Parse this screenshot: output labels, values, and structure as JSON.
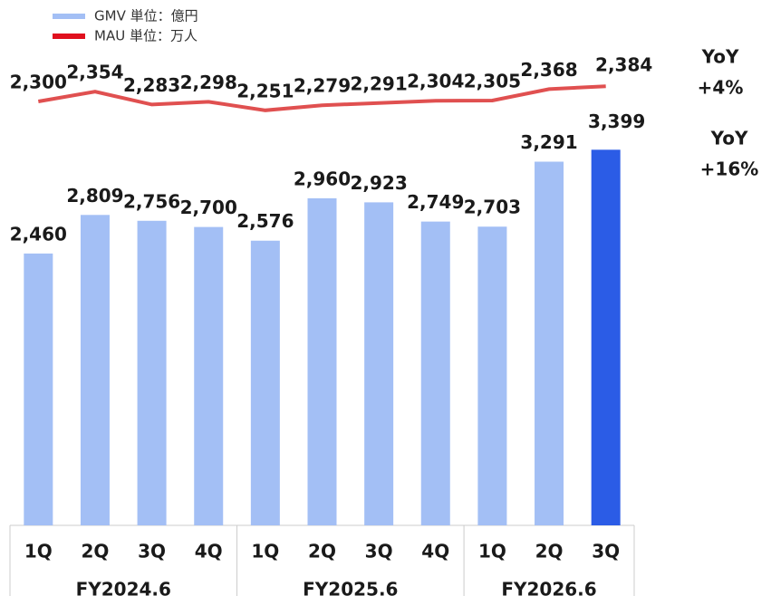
{
  "chart_data": {
    "type": "bar_line",
    "categories": [
      "1Q",
      "2Q",
      "3Q",
      "4Q",
      "1Q",
      "2Q",
      "3Q",
      "4Q",
      "1Q",
      "2Q",
      "3Q"
    ],
    "groups": [
      {
        "label": "FY2024.6",
        "span": [
          0,
          3
        ]
      },
      {
        "label": "FY2025.6",
        "span": [
          4,
          7
        ]
      },
      {
        "label": "FY2026.6",
        "span": [
          8,
          10
        ]
      }
    ],
    "series": [
      {
        "name": "GMV 単位：億円",
        "type": "bar",
        "color": "#a3bff5",
        "colors": [
          "#a3bff5",
          "#a3bff5",
          "#a3bff5",
          "#a3bff5",
          "#a3bff5",
          "#a3bff5",
          "#a3bff5",
          "#a3bff5",
          "#a3bff5",
          "#a3bff5",
          "#2b5ce6"
        ],
        "values": [
          2460,
          2809,
          2756,
          2700,
          2576,
          2960,
          2923,
          2749,
          2703,
          3291,
          3399
        ],
        "value_labels": [
          "2,460",
          "2,809",
          "2,756",
          "2,700",
          "2,576",
          "2,960",
          "2,923",
          "2,749",
          "2,703",
          "3,291",
          "3,399"
        ]
      },
      {
        "name": "MAU 単位：万人",
        "type": "line",
        "axis": "y2",
        "color": "#e05050",
        "legend_color": "#e0101e",
        "values": [
          2300,
          2354,
          2283,
          2298,
          2251,
          2279,
          2291,
          2304,
          2305,
          2368,
          2384
        ],
        "value_labels": [
          "2,300",
          "2,354",
          "2,283",
          "2,298",
          "2,251",
          "2,279",
          "2,291",
          "2,304",
          "2,305",
          "2,368",
          "2,384"
        ]
      }
    ],
    "annotations": [
      {
        "lines": [
          "YoY",
          "+4%"
        ],
        "color": "#e84545"
      },
      {
        "lines": [
          "YoY",
          "+16%"
        ],
        "color": "#2b5ce6"
      }
    ],
    "ylim": [
      0,
      4000
    ],
    "y2lim": [
      -40,
      2400
    ],
    "grid": false
  }
}
